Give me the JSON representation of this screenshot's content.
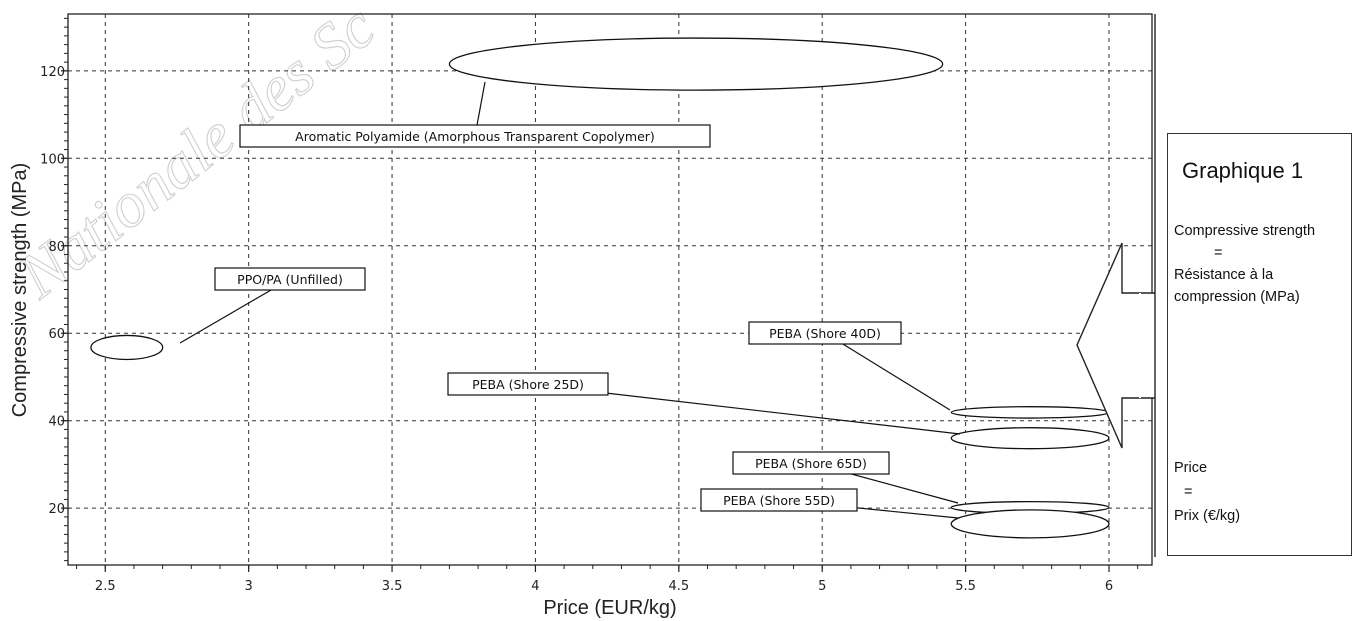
{
  "watermark": "Nationale des Sc",
  "chart_data": {
    "type": "bubble",
    "xlabel": "Price (EUR/kg)",
    "ylabel": "Compressive strength (MPa)",
    "xlim": [
      2.37,
      6.15
    ],
    "ylim": [
      7,
      133
    ],
    "xticks": [
      2.5,
      3,
      3.5,
      4,
      4.5,
      5,
      5.5,
      6
    ],
    "xtick_labels": [
      "2.5",
      "3",
      "3.5",
      "4",
      "4.5",
      "5",
      "5.5",
      "6"
    ],
    "yticks": [
      20,
      40,
      60,
      80,
      100,
      120
    ],
    "ytick_labels": [
      "20",
      "40",
      "60",
      "80",
      "100",
      "120"
    ],
    "grid": true,
    "materials": [
      {
        "name": "Aromatic Polyamide (Amorphous Transparent Copolymer)",
        "price_range": [
          3.7,
          5.42
        ],
        "strength_range": [
          115.6,
          127.5
        ]
      },
      {
        "name": "PPO/PA (Unfilled)",
        "price_range": [
          2.45,
          2.7
        ],
        "strength_range": [
          54,
          59.5
        ]
      },
      {
        "name": "PEBA (Shore 40D)",
        "price_range": [
          5.45,
          6.0
        ],
        "strength_range": [
          40.6,
          43.2
        ]
      },
      {
        "name": "PEBA (Shore 25D)",
        "price_range": [
          5.45,
          6.0
        ],
        "strength_range": [
          33.6,
          38.4
        ]
      },
      {
        "name": "PEBA (Shore 65D)",
        "price_range": [
          5.45,
          6.0
        ],
        "strength_range": [
          18.8,
          21.5
        ]
      },
      {
        "name": "PEBA (Shore 55D)",
        "price_range": [
          5.45,
          6.0
        ],
        "strength_range": [
          13.2,
          19.6
        ]
      }
    ]
  },
  "legend": {
    "title": "Graphique 1",
    "def1_term": "Compressive strength",
    "def1_eq": "=",
    "def1_trans": "Résistance à la compression (MPa)",
    "def2_term": "Price",
    "def2_eq": "=",
    "def2_trans": "Prix (€/kg)"
  }
}
